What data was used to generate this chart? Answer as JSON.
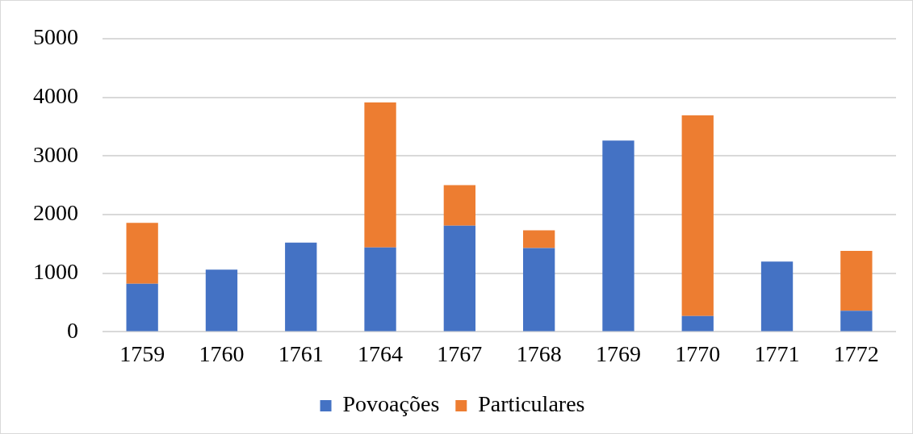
{
  "chart_data": {
    "type": "bar",
    "stacked": true,
    "categories": [
      "1759",
      "1760",
      "1761",
      "1764",
      "1767",
      "1768",
      "1769",
      "1770",
      "1771",
      "1772"
    ],
    "series": [
      {
        "name": "Povoações",
        "color": "#4472c4",
        "values": [
          820,
          1060,
          1520,
          1440,
          1810,
          1430,
          3260,
          270,
          1200,
          360
        ]
      },
      {
        "name": "Particulares",
        "color": "#ed7d31",
        "values": [
          1040,
          null,
          null,
          2470,
          690,
          300,
          null,
          3420,
          null,
          1020
        ]
      }
    ],
    "ylim": [
      0,
      5000
    ],
    "yticks": [
      0,
      1000,
      2000,
      3000,
      4000,
      5000
    ],
    "grid": "y",
    "legend": "bottom"
  }
}
